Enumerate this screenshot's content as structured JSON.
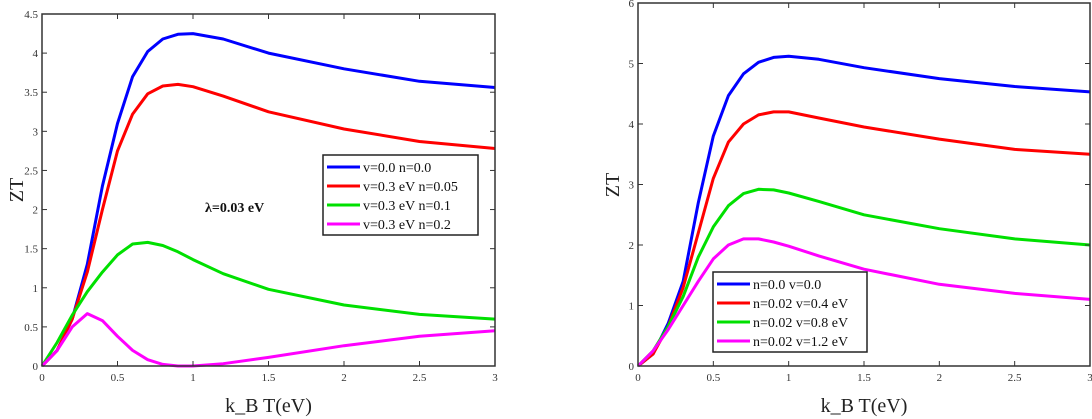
{
  "chart_data": [
    {
      "type": "line",
      "title": "",
      "xlabel": "k_B T(eV)",
      "xlabel_main": "k",
      "xlabel_sub": "B",
      "xlabel_rest": "T(eV)",
      "ylabel": "ZT",
      "xlim": [
        0,
        3
      ],
      "ylim": [
        0,
        4.5
      ],
      "xticks": [
        "0",
        "0.5",
        "1",
        "1.5",
        "2",
        "2.5",
        "3"
      ],
      "xtick_values": [
        0,
        0.5,
        1,
        1.5,
        2,
        2.5,
        3
      ],
      "yticks": [
        "0",
        "0.5",
        "1",
        "1.5",
        "2",
        "2.5",
        "3",
        "3.5",
        "4",
        "4.5"
      ],
      "ytick_values": [
        0,
        0.5,
        1,
        1.5,
        2,
        2.5,
        3,
        3.5,
        4,
        4.5
      ],
      "grid": false,
      "legend_position": "center-right",
      "annotation": "λ=0.03 eV",
      "x": [
        0,
        0.1,
        0.2,
        0.3,
        0.4,
        0.5,
        0.6,
        0.7,
        0.8,
        0.9,
        1.0,
        1.2,
        1.5,
        2.0,
        2.5,
        3.0
      ],
      "series": [
        {
          "name": "v=0.0      n=0.0",
          "color": "#0000ff",
          "values": [
            0,
            0.2,
            0.6,
            1.3,
            2.3,
            3.1,
            3.7,
            4.02,
            4.18,
            4.24,
            4.25,
            4.18,
            4.0,
            3.8,
            3.64,
            3.56
          ]
        },
        {
          "name": "v=0.3 eV n=0.05",
          "color": "#ff0000",
          "values": [
            0,
            0.2,
            0.6,
            1.2,
            2.0,
            2.75,
            3.22,
            3.48,
            3.58,
            3.6,
            3.57,
            3.45,
            3.25,
            3.03,
            2.87,
            2.78
          ]
        },
        {
          "name": "v=0.3 eV n=0.1",
          "color": "#00e000",
          "values": [
            0,
            0.3,
            0.65,
            0.95,
            1.2,
            1.42,
            1.56,
            1.58,
            1.54,
            1.46,
            1.36,
            1.18,
            0.98,
            0.78,
            0.66,
            0.6
          ]
        },
        {
          "name": "v=0.3 eV n=0.2",
          "color": "#ff00ff",
          "values": [
            0,
            0.2,
            0.5,
            0.67,
            0.58,
            0.38,
            0.2,
            0.08,
            0.02,
            0,
            0,
            0.03,
            0.11,
            0.26,
            0.38,
            0.45
          ]
        }
      ]
    },
    {
      "type": "line",
      "title": "",
      "xlabel": "k_B T(eV)",
      "xlabel_main": "k",
      "xlabel_sub": "B",
      "xlabel_rest": "T(eV)",
      "ylabel": "ZT",
      "xlim": [
        0,
        3
      ],
      "ylim": [
        0,
        6
      ],
      "xticks": [
        "0",
        "0.5",
        "1",
        "1.5",
        "2",
        "2.5",
        "3"
      ],
      "xtick_values": [
        0,
        0.5,
        1,
        1.5,
        2,
        2.5,
        3
      ],
      "yticks": [
        "0",
        "1",
        "2",
        "3",
        "4",
        "5",
        "6"
      ],
      "ytick_values": [
        0,
        1,
        2,
        3,
        4,
        5,
        6
      ],
      "grid": false,
      "legend_position": "bottom-left",
      "x": [
        0,
        0.1,
        0.2,
        0.3,
        0.4,
        0.5,
        0.6,
        0.7,
        0.8,
        0.9,
        1.0,
        1.2,
        1.5,
        2.0,
        2.5,
        3.0
      ],
      "series": [
        {
          "name": "n=0.0 v=0.0",
          "color": "#0000ff",
          "values": [
            0,
            0.2,
            0.7,
            1.4,
            2.7,
            3.8,
            4.47,
            4.83,
            5.02,
            5.1,
            5.12,
            5.07,
            4.93,
            4.75,
            4.62,
            4.53
          ]
        },
        {
          "name": "n=0.02 v=0.4 eV",
          "color": "#ff0000",
          "values": [
            0,
            0.2,
            0.65,
            1.3,
            2.2,
            3.1,
            3.7,
            4.0,
            4.15,
            4.2,
            4.2,
            4.1,
            3.95,
            3.75,
            3.58,
            3.5
          ]
        },
        {
          "name": "n=0.02 v=0.8 eV",
          "color": "#00e000",
          "values": [
            0,
            0.25,
            0.65,
            1.15,
            1.8,
            2.3,
            2.65,
            2.85,
            2.92,
            2.91,
            2.86,
            2.72,
            2.5,
            2.27,
            2.1,
            2.0
          ]
        },
        {
          "name": "n=0.02 v=1.2 eV",
          "color": "#ff00ff",
          "values": [
            0,
            0.25,
            0.6,
            1.0,
            1.4,
            1.77,
            2.0,
            2.1,
            2.1,
            2.05,
            1.98,
            1.82,
            1.6,
            1.35,
            1.2,
            1.1
          ]
        }
      ]
    }
  ]
}
